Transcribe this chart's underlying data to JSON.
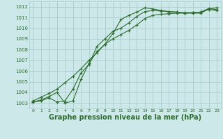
{
  "background_color": "#cce8e8",
  "grid_color": "#aacccc",
  "line_color": "#2d6e2d",
  "xlabel": "Graphe pression niveau de la mer (hPa)",
  "xlabel_fontsize": 7.0,
  "ylim": [
    1002.5,
    1012.5
  ],
  "xlim": [
    -0.5,
    23.5
  ],
  "yticks": [
    1003,
    1004,
    1005,
    1006,
    1007,
    1008,
    1009,
    1010,
    1011,
    1012
  ],
  "xticks": [
    0,
    1,
    2,
    3,
    4,
    5,
    6,
    7,
    8,
    9,
    10,
    11,
    12,
    13,
    14,
    15,
    16,
    17,
    18,
    19,
    20,
    21,
    22,
    23
  ],
  "line1_x": [
    0,
    1,
    2,
    3,
    4,
    5,
    6,
    7,
    8,
    9,
    10,
    11,
    12,
    13,
    14,
    15,
    16,
    17,
    18,
    19,
    20,
    21,
    22,
    23
  ],
  "line1_y": [
    1003.1,
    1003.3,
    1003.6,
    1004.0,
    1003.0,
    1003.2,
    1005.2,
    1006.7,
    1007.8,
    1008.5,
    1009.5,
    1010.8,
    1011.2,
    1011.5,
    1011.9,
    1011.8,
    1011.65,
    1011.55,
    1011.5,
    1011.4,
    1011.4,
    1011.4,
    1011.8,
    1011.9
  ],
  "line2_x": [
    0,
    1,
    2,
    3,
    4,
    5,
    6,
    7,
    8,
    9,
    10,
    11,
    12,
    13,
    14,
    15,
    16,
    17,
    18,
    19,
    20,
    21,
    22,
    23
  ],
  "line2_y": [
    1003.1,
    1003.2,
    1003.5,
    1003.1,
    1003.2,
    1004.3,
    1005.8,
    1006.6,
    1008.3,
    1009.0,
    1009.7,
    1010.0,
    1010.5,
    1011.1,
    1011.55,
    1011.65,
    1011.6,
    1011.55,
    1011.5,
    1011.45,
    1011.45,
    1011.5,
    1011.85,
    1011.72
  ],
  "line3_x": [
    0,
    1,
    2,
    3,
    4,
    5,
    6,
    7,
    8,
    9,
    10,
    11,
    12,
    13,
    14,
    15,
    16,
    17,
    18,
    19,
    20,
    21,
    22,
    23
  ],
  "line3_y": [
    1003.2,
    1003.55,
    1003.9,
    1004.3,
    1004.9,
    1005.5,
    1006.2,
    1007.0,
    1007.7,
    1008.5,
    1009.0,
    1009.4,
    1009.8,
    1010.3,
    1010.9,
    1011.2,
    1011.3,
    1011.35,
    1011.4,
    1011.4,
    1011.45,
    1011.5,
    1011.75,
    1011.65
  ]
}
